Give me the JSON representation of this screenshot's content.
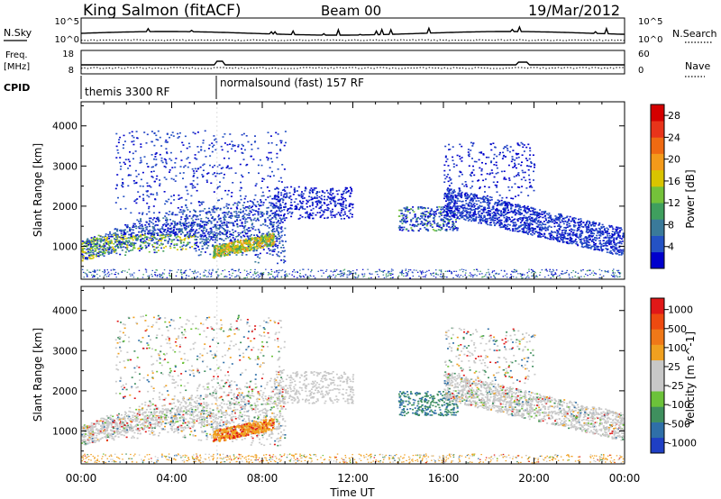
{
  "header": {
    "title": "King Salmon (fitACF)",
    "beam": "Beam 00",
    "date": "19/Mar/2012"
  },
  "nsky_panel": {
    "left_label": "N.Sky",
    "right_label": "N.Search",
    "left_ticks": [
      "10^5",
      "10^0"
    ],
    "right_ticks": [
      "10^5",
      "10^0"
    ]
  },
  "freq_panel": {
    "left_label_line1": "Freq.",
    "left_label_line2": "[MHz]",
    "right_label": "Nave",
    "left_ticks": [
      "18",
      "8"
    ],
    "right_ticks": [
      "60",
      "0"
    ]
  },
  "cpid": {
    "label": "CPID",
    "segments": [
      {
        "name": "themis 3300 RF",
        "start_hour": 0.0
      },
      {
        "name": "normalsound (fast) 157 RF",
        "start_hour": 5.95
      }
    ]
  },
  "x_axis": {
    "label": "Time UT",
    "tick_labels": [
      "00:00",
      "04:00",
      "08:00",
      "12:00",
      "16:00",
      "20:00",
      "00:00"
    ]
  },
  "chart_data": [
    {
      "type": "heatmap",
      "name": "power",
      "ylabel": "Slant Range [km]",
      "yticks": [
        "1000",
        "2000",
        "3000",
        "4000"
      ],
      "ylim": [
        180,
        4600
      ],
      "xlim": [
        0,
        24
      ],
      "colorbar": {
        "label": "Power [dB]",
        "tick_labels": [
          "4",
          "8",
          "12",
          "16",
          "20",
          "24",
          "28"
        ],
        "colors": [
          "#0000cc",
          "#2452c4",
          "#3a7a9a",
          "#3f9f5e",
          "#74c23a",
          "#d9c400",
          "#f39a1a",
          "#ef6a12",
          "#e8341a",
          "#d40000"
        ]
      }
    },
    {
      "type": "heatmap",
      "name": "velocity",
      "ylabel": "Slant Range [km]",
      "yticks": [
        "1000",
        "2000",
        "3000",
        "4000"
      ],
      "ylim": [
        180,
        4600
      ],
      "xlim": [
        0,
        24
      ],
      "colorbar": {
        "label": "Velocity [m s^-1]",
        "tick_labels": [
          "1000",
          "500",
          "100",
          "25",
          "-25",
          "-100",
          "-500",
          "-1000"
        ],
        "colors": [
          "#1f3fc4",
          "#2f6fa8",
          "#3f8f5e",
          "#6cc23a",
          "#c8c8c8",
          "#c8c8c8",
          "#f0a020",
          "#f07818",
          "#ee4a10",
          "#e01818"
        ]
      }
    }
  ]
}
